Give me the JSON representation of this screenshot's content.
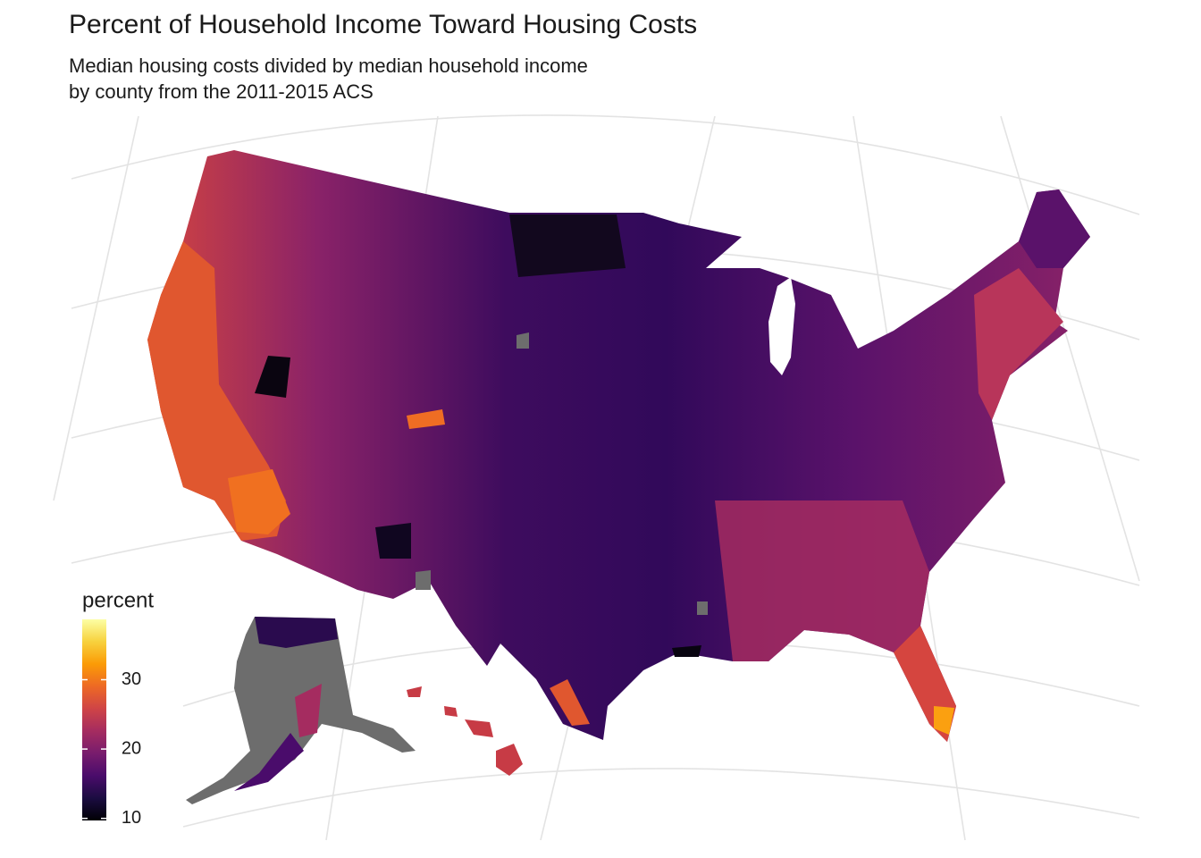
{
  "map": {
    "title": "Percent of Household Income Toward Housing Costs",
    "subtitle": [
      "Median housing costs divided by median household income",
      "by county from the 2011-2015 ACS"
    ],
    "legend": {
      "title": "percent",
      "lim": [
        9.7,
        38.7
      ],
      "ticks": [
        10,
        20,
        30
      ],
      "colors": [
        "#000004",
        "#1b0c41",
        "#4a0c6b",
        "#781c6d",
        "#a52c60",
        "#cf4446",
        "#ed6925",
        "#fb9b06",
        "#f7d13d",
        "#fcffa4"
      ]
    }
  }
}
